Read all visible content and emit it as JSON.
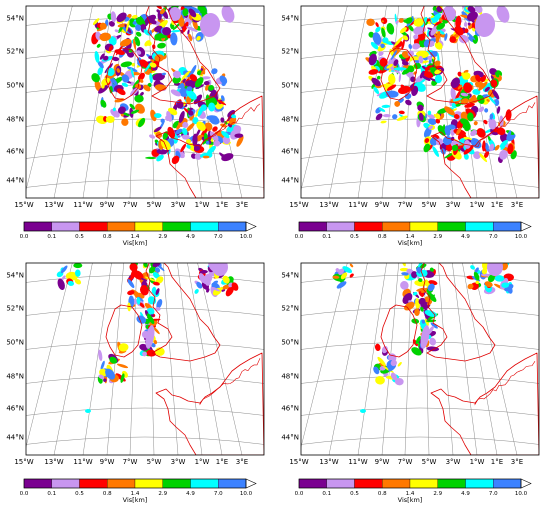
{
  "latitude_labels": [
    "44°N",
    "46°N",
    "48°N",
    "50°N",
    "52°N",
    "54°N"
  ],
  "longitude_labels": [
    "15°W",
    "13°W",
    "11°W",
    "9°W",
    "7°W",
    "5°W",
    "3°W",
    "1°W",
    "1°E",
    "3°E"
  ],
  "colorbar": {
    "title": "Vis[km]",
    "ticks": [
      "0.0",
      "0.1",
      "0.5",
      "0.8",
      "1.4",
      "2.9",
      "4.9",
      "7.0",
      "10.0"
    ],
    "colors": [
      "#7a0090",
      "#c896f0",
      "#ff0000",
      "#ff7800",
      "#ffff00",
      "#00d200",
      "#00ffff",
      "#3c82ff"
    ]
  },
  "colors": {
    "coastline": "#e00000",
    "graticule": "#8c8c8c",
    "frame": "#000000"
  },
  "panels": [
    {
      "id": "top-left",
      "field": "dense"
    },
    {
      "id": "top-right",
      "field": "dense"
    },
    {
      "id": "bottom-left",
      "field": "sparse"
    },
    {
      "id": "bottom-right",
      "field": "sparse"
    }
  ]
}
